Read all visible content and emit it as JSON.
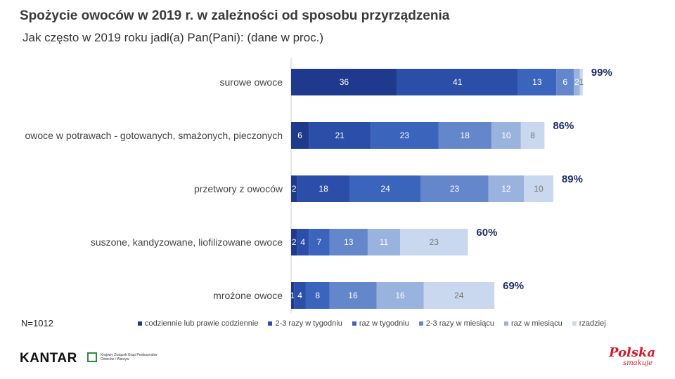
{
  "title": "Spożycie owoców w 2019 r. w zależności od sposobu przyrządzenia",
  "subtitle": "Jak często w 2019 roku jadł(a) Pan(Pani): (dane w proc.)",
  "footer": {
    "sample": "N=1012"
  },
  "logos": {
    "kantar": "KANTAR",
    "kzg": "Krajowy Związek Grup Producentów Owoców i Warzyw",
    "polska": "Polska",
    "polska_sub": "smakuje"
  },
  "chart_data": {
    "type": "bar",
    "orientation": "horizontal",
    "stacked": true,
    "categories": [
      "surowe owoce",
      "owoce w potrawach - gotowanych, smażonych, pieczonych",
      "przetwory z owoców",
      "suszone, kandyzowane, liofilizowane owoce",
      "mrożone owoce"
    ],
    "series": [
      {
        "name": "codziennie lub prawie codziennie",
        "color": "#1f3a8c",
        "values": [
          36,
          6,
          2,
          2,
          1
        ]
      },
      {
        "name": "2-3 razy w tygodniu",
        "color": "#2b4ea8",
        "values": [
          41,
          21,
          18,
          4,
          4
        ]
      },
      {
        "name": "raz w tygodniu",
        "color": "#3b64bd",
        "values": [
          13,
          23,
          24,
          7,
          8
        ]
      },
      {
        "name": "2-3 razy w miesiącu",
        "color": "#6487cc",
        "values": [
          6,
          18,
          23,
          13,
          16
        ]
      },
      {
        "name": "raz w miesiącu",
        "color": "#9ab2de",
        "values": [
          2,
          10,
          12,
          11,
          16
        ]
      },
      {
        "name": "rzadziej",
        "color": "#c9d7ef",
        "values": [
          1,
          8,
          10,
          23,
          24
        ]
      }
    ],
    "data_labels": [
      [
        "36",
        "41",
        "13",
        "6",
        "2",
        "1"
      ],
      [
        "6",
        "21",
        "23",
        "18",
        "10",
        "8"
      ],
      [
        "2",
        "18",
        "24",
        "23",
        "12",
        "10"
      ],
      [
        "2",
        "4",
        "7",
        "13",
        "11",
        "23"
      ],
      [
        "1",
        "4",
        "8",
        "16",
        "16",
        "24"
      ]
    ],
    "totals": [
      "99%",
      "86%",
      "89%",
      "60%",
      "69%"
    ],
    "xlim": [
      0,
      100
    ],
    "grid": false,
    "legend_position": "bottom"
  }
}
